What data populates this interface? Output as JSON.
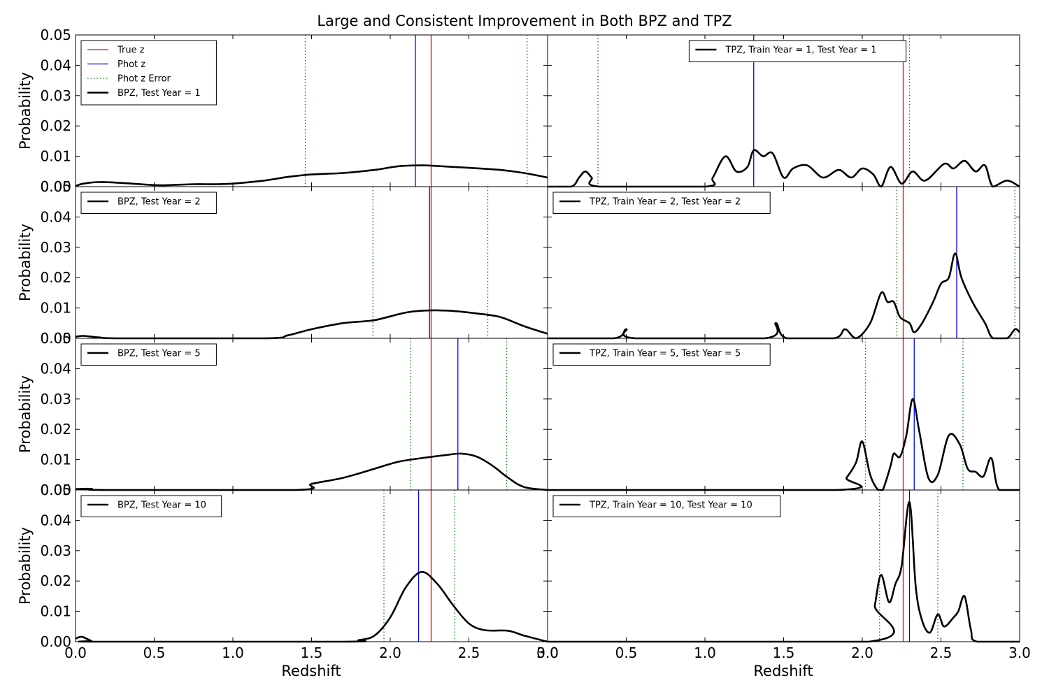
{
  "figure": {
    "title": "Large and Consistent Improvement in Both BPZ and TPZ",
    "xlabel": "Redshift",
    "ylabel": "Probability",
    "colors": {
      "true_z": "#ff0000",
      "phot_z": "#0000ff",
      "error": "#008000",
      "pdf": "#000000"
    }
  },
  "chart_data": [
    {
      "type": "line",
      "panel": "row1-left",
      "xlim": [
        0,
        3
      ],
      "ylim": [
        0,
        0.05
      ],
      "grid": false,
      "legend_position": "upper-left",
      "x_ticks": [
        "0.0",
        "0.5",
        "1.0",
        "1.5",
        "2.0",
        "2.5",
        "3.0"
      ],
      "y_ticks": [
        "0.00",
        "0.01",
        "0.02",
        "0.03",
        "0.04",
        "0.05"
      ],
      "true_z": 2.26,
      "phot_z": 2.16,
      "phot_z_error": [
        1.46,
        2.87
      ],
      "legend": [
        {
          "label": "True z",
          "style": "red"
        },
        {
          "label": "Phot z",
          "style": "blue"
        },
        {
          "label": "Phot z Error",
          "style": "dotted"
        },
        {
          "label": "BPZ, Test Year = 1",
          "style": "pdf"
        }
      ],
      "series": [
        {
          "name": "BPZ, Test Year = 1",
          "points": [
            [
              0,
              0.0002
            ],
            [
              0.05,
              0.001
            ],
            [
              0.15,
              0.0015
            ],
            [
              0.3,
              0.0012
            ],
            [
              0.5,
              0.0005
            ],
            [
              0.6,
              0.0005
            ],
            [
              0.75,
              0.0008
            ],
            [
              0.9,
              0.0008
            ],
            [
              1.0,
              0.001
            ],
            [
              1.2,
              0.002
            ],
            [
              1.35,
              0.0032
            ],
            [
              1.5,
              0.004
            ],
            [
              1.7,
              0.0045
            ],
            [
              1.9,
              0.0055
            ],
            [
              2.05,
              0.0067
            ],
            [
              2.2,
              0.007
            ],
            [
              2.3,
              0.0068
            ],
            [
              2.5,
              0.0062
            ],
            [
              2.7,
              0.0055
            ],
            [
              2.85,
              0.0045
            ],
            [
              3.0,
              0.003
            ]
          ]
        }
      ]
    },
    {
      "type": "line",
      "panel": "row1-right",
      "xlim": [
        0,
        3
      ],
      "ylim": [
        0,
        0.05
      ],
      "grid": false,
      "legend_position": "upper-center",
      "x_ticks": [
        "0.0",
        "0.5",
        "1.0",
        "1.5",
        "2.0",
        "2.5",
        "3.0"
      ],
      "true_z": 2.26,
      "phot_z": 1.31,
      "phot_z_error": [
        0.32,
        2.3
      ],
      "legend": [
        {
          "label": "TPZ, Train Year = 1, Test Year = 1",
          "style": "pdf"
        }
      ],
      "series": [
        {
          "name": "TPZ, Train Year = 1, Test Year = 1",
          "points": [
            [
              0,
              0
            ],
            [
              0.15,
              0
            ],
            [
              0.2,
              0.003
            ],
            [
              0.24,
              0.005
            ],
            [
              0.28,
              0.003
            ],
            [
              0.33,
              0
            ],
            [
              1.0,
              0
            ],
            [
              1.05,
              0.003
            ],
            [
              1.13,
              0.01
            ],
            [
              1.2,
              0.005
            ],
            [
              1.27,
              0.0065
            ],
            [
              1.31,
              0.012
            ],
            [
              1.37,
              0.01
            ],
            [
              1.43,
              0.011
            ],
            [
              1.5,
              0.003
            ],
            [
              1.56,
              0.006
            ],
            [
              1.65,
              0.007
            ],
            [
              1.75,
              0.003
            ],
            [
              1.85,
              0.0055
            ],
            [
              1.93,
              0.003
            ],
            [
              2.0,
              0.006
            ],
            [
              2.07,
              0.004
            ],
            [
              2.12,
              0
            ],
            [
              2.18,
              0.0065
            ],
            [
              2.25,
              0.001
            ],
            [
              2.32,
              0.005
            ],
            [
              2.4,
              0.002
            ],
            [
              2.52,
              0.0075
            ],
            [
              2.58,
              0.006
            ],
            [
              2.65,
              0.0085
            ],
            [
              2.72,
              0.005
            ],
            [
              2.78,
              0.007
            ],
            [
              2.83,
              0
            ],
            [
              2.92,
              0.002
            ],
            [
              3.0,
              0
            ]
          ]
        }
      ]
    },
    {
      "type": "line",
      "panel": "row2-left",
      "xlim": [
        0,
        3
      ],
      "ylim": [
        0,
        0.05
      ],
      "grid": false,
      "legend_position": "upper-left",
      "x_ticks": [
        "0.0",
        "0.5",
        "1.0",
        "1.5",
        "2.0",
        "2.5",
        "3.0"
      ],
      "y_ticks": [
        "0.00",
        "0.01",
        "0.02",
        "0.03",
        "0.04",
        "0.05"
      ],
      "true_z": 2.26,
      "phot_z": 2.25,
      "phot_z_error": [
        1.89,
        2.62
      ],
      "legend": [
        {
          "label": "BPZ, Test Year = 2",
          "style": "pdf"
        }
      ],
      "series": [
        {
          "name": "BPZ, Test Year = 2",
          "points": [
            [
              0,
              0.0005
            ],
            [
              0.05,
              0.0008
            ],
            [
              0.15,
              0.0003
            ],
            [
              0.3,
              0
            ],
            [
              1.2,
              0
            ],
            [
              1.35,
              0.001
            ],
            [
              1.5,
              0.003
            ],
            [
              1.7,
              0.005
            ],
            [
              1.9,
              0.006
            ],
            [
              2.1,
              0.0085
            ],
            [
              2.25,
              0.0092
            ],
            [
              2.4,
              0.009
            ],
            [
              2.55,
              0.0082
            ],
            [
              2.7,
              0.007
            ],
            [
              2.85,
              0.004
            ],
            [
              3.0,
              0.0015
            ]
          ]
        }
      ]
    },
    {
      "type": "line",
      "panel": "row2-right",
      "xlim": [
        0,
        3
      ],
      "ylim": [
        0,
        0.05
      ],
      "grid": false,
      "legend_position": "upper-left",
      "x_ticks": [
        "0.0",
        "0.5",
        "1.0",
        "1.5",
        "2.0",
        "2.5",
        "3.0"
      ],
      "true_z": 2.26,
      "phot_z": 2.6,
      "phot_z_error": [
        2.22,
        2.97
      ],
      "legend": [
        {
          "label": "TPZ, Train Year = 2, Test Year = 2",
          "style": "pdf"
        }
      ],
      "series": [
        {
          "name": "TPZ, Train Year = 2, Test Year = 2",
          "points": [
            [
              0,
              0
            ],
            [
              0.42,
              0
            ],
            [
              0.5,
              0.003
            ],
            [
              0.56,
              0
            ],
            [
              1.38,
              0
            ],
            [
              1.45,
              0.005
            ],
            [
              1.52,
              0
            ],
            [
              1.82,
              0
            ],
            [
              1.89,
              0.003
            ],
            [
              1.96,
              0
            ],
            [
              2.05,
              0.005
            ],
            [
              2.12,
              0.015
            ],
            [
              2.16,
              0.012
            ],
            [
              2.2,
              0.012
            ],
            [
              2.24,
              0.007
            ],
            [
              2.3,
              0.005
            ],
            [
              2.33,
              0.002
            ],
            [
              2.38,
              0.005
            ],
            [
              2.45,
              0.012
            ],
            [
              2.5,
              0.018
            ],
            [
              2.55,
              0.02
            ],
            [
              2.59,
              0.028
            ],
            [
              2.63,
              0.02
            ],
            [
              2.7,
              0.012
            ],
            [
              2.78,
              0.005
            ],
            [
              2.83,
              0
            ],
            [
              2.92,
              0
            ],
            [
              2.97,
              0.003
            ],
            [
              3.0,
              0.002
            ]
          ]
        }
      ]
    },
    {
      "type": "line",
      "panel": "row3-left",
      "xlim": [
        0,
        3
      ],
      "ylim": [
        0,
        0.05
      ],
      "grid": false,
      "legend_position": "upper-left",
      "x_ticks": [
        "0.0",
        "0.5",
        "1.0",
        "1.5",
        "2.0",
        "2.5",
        "3.0"
      ],
      "y_ticks": [
        "0.00",
        "0.01",
        "0.02",
        "0.03",
        "0.04",
        "0.05"
      ],
      "true_z": 2.26,
      "phot_z": 2.43,
      "phot_z_error": [
        2.13,
        2.74
      ],
      "legend": [
        {
          "label": "BPZ, Test Year = 5",
          "style": "pdf"
        }
      ],
      "series": [
        {
          "name": "BPZ, Test Year = 5",
          "points": [
            [
              0,
              0.0003
            ],
            [
              0.1,
              0.0004
            ],
            [
              0.2,
              0
            ],
            [
              1.4,
              0
            ],
            [
              1.5,
              0.002
            ],
            [
              1.7,
              0.004
            ],
            [
              1.9,
              0.007
            ],
            [
              2.05,
              0.0093
            ],
            [
              2.2,
              0.0105
            ],
            [
              2.35,
              0.0115
            ],
            [
              2.45,
              0.012
            ],
            [
              2.55,
              0.011
            ],
            [
              2.65,
              0.008
            ],
            [
              2.75,
              0.004
            ],
            [
              2.85,
              0.001
            ],
            [
              3.0,
              0
            ]
          ]
        }
      ]
    },
    {
      "type": "line",
      "panel": "row3-right",
      "xlim": [
        0,
        3
      ],
      "ylim": [
        0,
        0.05
      ],
      "grid": false,
      "legend_position": "upper-left",
      "x_ticks": [
        "0.0",
        "0.5",
        "1.0",
        "1.5",
        "2.0",
        "2.5",
        "3.0"
      ],
      "true_z": 2.26,
      "phot_z": 2.33,
      "phot_z_error": [
        2.02,
        2.64
      ],
      "legend": [
        {
          "label": "TPZ, Train Year = 5, Test Year = 5",
          "style": "pdf"
        }
      ],
      "series": [
        {
          "name": "TPZ, Train Year = 5, Test Year = 5",
          "points": [
            [
              0,
              0
            ],
            [
              1.84,
              0
            ],
            [
              1.9,
              0.004
            ],
            [
              1.96,
              0.009
            ],
            [
              2.0,
              0.016
            ],
            [
              2.05,
              0.005
            ],
            [
              2.1,
              0
            ],
            [
              2.13,
              0
            ],
            [
              2.18,
              0.008
            ],
            [
              2.2,
              0.012
            ],
            [
              2.24,
              0.011
            ],
            [
              2.28,
              0.018
            ],
            [
              2.32,
              0.03
            ],
            [
              2.36,
              0.02
            ],
            [
              2.42,
              0.004
            ],
            [
              2.48,
              0.005
            ],
            [
              2.55,
              0.018
            ],
            [
              2.62,
              0.015
            ],
            [
              2.67,
              0.007
            ],
            [
              2.72,
              0.006
            ],
            [
              2.77,
              0.0045
            ],
            [
              2.82,
              0.0105
            ],
            [
              2.87,
              0
            ],
            [
              3.0,
              0
            ]
          ]
        }
      ]
    },
    {
      "type": "line",
      "panel": "row4-left",
      "xlim": [
        0,
        3
      ],
      "ylim": [
        0,
        0.05
      ],
      "grid": false,
      "legend_position": "upper-left",
      "x_ticks": [
        "0.0",
        "0.5",
        "1.0",
        "1.5",
        "2.0",
        "2.5",
        "3.0"
      ],
      "y_ticks": [
        "0.00",
        "0.01",
        "0.02",
        "0.03",
        "0.04",
        "0.05"
      ],
      "true_z": 2.26,
      "phot_z": 2.18,
      "phot_z_error": [
        1.96,
        2.41
      ],
      "legend": [
        {
          "label": "BPZ, Test Year = 10",
          "style": "pdf"
        }
      ],
      "series": [
        {
          "name": "BPZ, Test Year = 10",
          "points": [
            [
              0,
              0.001
            ],
            [
              0.04,
              0.0016
            ],
            [
              0.1,
              0.0003
            ],
            [
              0.15,
              0
            ],
            [
              1.7,
              0
            ],
            [
              1.8,
              0.0005
            ],
            [
              1.9,
              0.002
            ],
            [
              2.0,
              0.008
            ],
            [
              2.1,
              0.018
            ],
            [
              2.2,
              0.023
            ],
            [
              2.3,
              0.019
            ],
            [
              2.4,
              0.012
            ],
            [
              2.5,
              0.006
            ],
            [
              2.6,
              0.0038
            ],
            [
              2.75,
              0.0036
            ],
            [
              2.85,
              0.002
            ],
            [
              3.0,
              0
            ]
          ]
        }
      ]
    },
    {
      "type": "line",
      "panel": "row4-right",
      "xlim": [
        0,
        3
      ],
      "ylim": [
        0,
        0.05
      ],
      "grid": false,
      "legend_position": "upper-left",
      "x_ticks": [
        "0.0",
        "0.5",
        "1.0",
        "1.5",
        "2.0",
        "2.5",
        "3.0"
      ],
      "true_z": 2.26,
      "phot_z": 2.3,
      "phot_z_error": [
        2.11,
        2.48
      ],
      "legend": [
        {
          "label": "TPZ, Train Year = 10, Test Year = 10",
          "style": "pdf"
        }
      ],
      "series": [
        {
          "name": "TPZ, Train Year = 10, Test Year = 10",
          "points": [
            [
              0,
              0
            ],
            [
              2.04,
              0
            ],
            [
              2.08,
              0.012
            ],
            [
              2.12,
              0.022
            ],
            [
              2.17,
              0.013
            ],
            [
              2.21,
              0.019
            ],
            [
              2.25,
              0.025
            ],
            [
              2.3,
              0.046
            ],
            [
              2.34,
              0.018
            ],
            [
              2.38,
              0.007
            ],
            [
              2.43,
              0.003
            ],
            [
              2.48,
              0.009
            ],
            [
              2.52,
              0.005
            ],
            [
              2.58,
              0.008
            ],
            [
              2.61,
              0.01
            ],
            [
              2.65,
              0.015
            ],
            [
              2.69,
              0.004
            ],
            [
              2.73,
              0
            ],
            [
              3.0,
              0
            ]
          ]
        }
      ]
    }
  ]
}
